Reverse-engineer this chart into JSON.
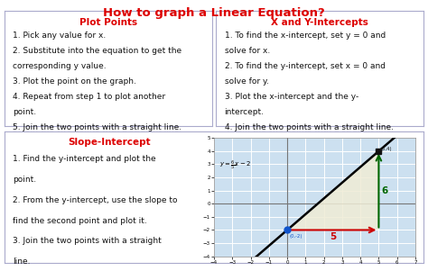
{
  "title": "How to graph a Linear Equation?",
  "title_color": "#dd0000",
  "title_fontsize": 9.5,
  "bg_color": "#ffffff",
  "section1_title": "Plot Points",
  "section1_title_color": "#dd0000",
  "section1_lines": [
    "1. Pick any value for x.",
    "2. Substitute into the equation to get the",
    "corresponding y value.",
    "3. Plot the point on the graph.",
    "4. Repeat from step 1 to plot another",
    "point.",
    "5. Join the two points with a straight line."
  ],
  "section2_title": "X and Y-Intercepts",
  "section2_title_color": "#dd0000",
  "section2_lines": [
    "1. To find the x-intercept, set y = 0 and",
    "solve for x.",
    "2. To find the y-intercept, set x = 0 and",
    "solve for y.",
    "3. Plot the x-intercept and the y-",
    "intercept.",
    "4. Join the two points with a straight line."
  ],
  "section3_title": "Slope-Intercept",
  "section3_title_color": "#dd0000",
  "section3_lines": [
    "1. Find the y-intercept and plot the",
    "point.",
    "2. From the y-intercept, use the slope to",
    "find the second point and plot it.",
    "3. Join the two points with a straight",
    "line."
  ],
  "graph_bg": "#cce0f0",
  "graph_xlim": [
    -4,
    7
  ],
  "graph_ylim": [
    -4,
    5
  ],
  "point1": [
    0,
    -2
  ],
  "point2": [
    5,
    4
  ],
  "triangle_color": "#f0ecd5",
  "run_color": "#cc0000",
  "rise_color": "#006600",
  "run_label": "5",
  "rise_label": "6",
  "run_label_color": "#cc0000",
  "rise_label_color": "#006600",
  "text_fontsize": 6.5,
  "section_title_fontsize": 7.5,
  "border_color": "#aaaacc"
}
